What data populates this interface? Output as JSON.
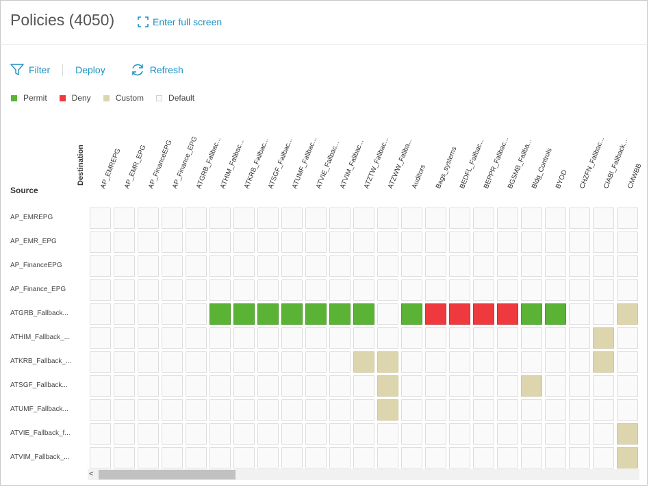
{
  "header": {
    "title": "Policies (4050)",
    "fullscreen_label": "Enter full screen"
  },
  "toolbar": {
    "filter_label": "Filter",
    "deploy_label": "Deploy",
    "refresh_label": "Refresh"
  },
  "legend": [
    {
      "label": "Permit",
      "status": "permit",
      "color": "#5ab334"
    },
    {
      "label": "Deny",
      "status": "deny",
      "color": "#ee3a3e"
    },
    {
      "label": "Custom",
      "status": "custom",
      "color": "#dcd5ae"
    },
    {
      "label": "Default",
      "status": "default",
      "color": "#fafafa"
    }
  ],
  "matrix": {
    "source_label": "Source",
    "destination_label": "Destination",
    "columns": [
      "AP_EMREPG",
      "AP_EMR_EPG",
      "AP_FinanceEPG",
      "AP_Finance_EPG",
      "ATGRB_Fallbac...",
      "ATHIM_Fallbac...",
      "ATKRB_Fallbac...",
      "ATSGF_Fallbac...",
      "ATUMF_Fallbac...",
      "ATVIE_Fallbac...",
      "ATVIM_Fallbac...",
      "ATZTW_Fallbac...",
      "ATZWW_Fallba...",
      "Auditors",
      "Bags_systems",
      "BEDFL_Fallbac...",
      "BEPPR_Fallbac...",
      "BGSMB_Fallba...",
      "Bldg_Controls",
      "BYOD",
      "CHZFN_Fallbac...",
      "CIABI_Fallback...",
      "CMWBB"
    ],
    "rows": [
      {
        "label": "AP_EMREPG",
        "cells": "ddddddddddddddddddddddd"
      },
      {
        "label": "AP_EMR_EPG",
        "cells": "ddddddddddddddddddddddd"
      },
      {
        "label": "AP_FinanceEPG",
        "cells": "ddddddddddddddddddddddd"
      },
      {
        "label": "AP_Finance_EPG",
        "cells": "ddddddddddddddddddddddd"
      },
      {
        "label": "ATGRB_Fallback...",
        "cells": "dddddpppppppdpxxxxppddc"
      },
      {
        "label": "ATHIM_Fallback_...",
        "cells": "dddddddddddddddddddddcd"
      },
      {
        "label": "ATKRB_Fallback_...",
        "cells": "dddddddddddccddddddddcd"
      },
      {
        "label": "ATSGF_Fallback...",
        "cells": "ddddddddddddcdddddcdddd"
      },
      {
        "label": "ATUMF_Fallback...",
        "cells": "ddddddddddddcdddddddddd"
      },
      {
        "label": "ATVIE_Fallback_f...",
        "cells": "ddddddddddddddddddddddc"
      },
      {
        "label": "ATVIM_Fallback_...",
        "cells": "ddddddddddddddddddddddc"
      }
    ],
    "cell_codes": {
      "d": "default",
      "p": "permit",
      "x": "deny",
      "c": "custom"
    }
  },
  "scrollbar": {
    "left_arrow": "<"
  }
}
